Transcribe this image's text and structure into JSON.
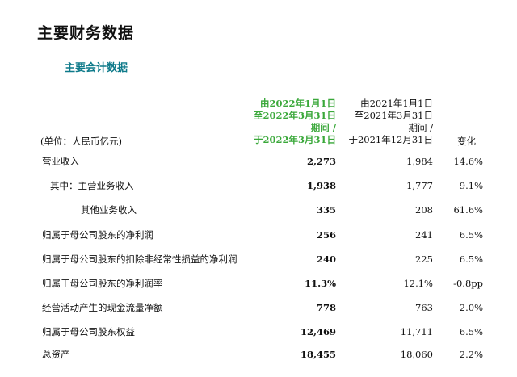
{
  "page_title": "主要财务数据",
  "section_title": "主要会计数据",
  "table": {
    "unit_label": "(单位：人民币亿元)",
    "current_period_header": [
      "由2022年1月1日",
      "至2022年3月31日",
      "期间 /",
      "于2022年3月31日"
    ],
    "prior_period_header": [
      "由2021年1月1日",
      "至2021年3月31日",
      "期间 /",
      "于2021年12月31日"
    ],
    "change_header": "变化",
    "rows": [
      {
        "label": "营业收入",
        "current": "2,273",
        "prior": "1,984",
        "change": "14.6%"
      },
      {
        "label": "其中：主营业务收入",
        "current": "1,938",
        "prior": "1,777",
        "change": "9.1%"
      },
      {
        "label": "其他业务收入",
        "current": "335",
        "prior": "208",
        "change": "61.6%"
      },
      {
        "label": "归属于母公司股东的净利润",
        "current": "256",
        "prior": "241",
        "change": "6.5%"
      },
      {
        "label": "归属于母公司股东的扣除非经常性损益的净利润",
        "current": "240",
        "prior": "225",
        "change": "6.5%"
      },
      {
        "label": "归属于母公司股东的净利润率",
        "current": "11.3%",
        "prior": "12.1%",
        "change": "-0.8pp"
      },
      {
        "label": "经营活动产生的现金流量净额",
        "current": "778",
        "prior": "763",
        "change": "2.0%"
      },
      {
        "label": "归属于母公司股东权益",
        "current": "12,469",
        "prior": "11,711",
        "change": "6.5%"
      },
      {
        "label": "总资产",
        "current": "18,455",
        "prior": "18,060",
        "change": "2.2%"
      }
    ]
  }
}
